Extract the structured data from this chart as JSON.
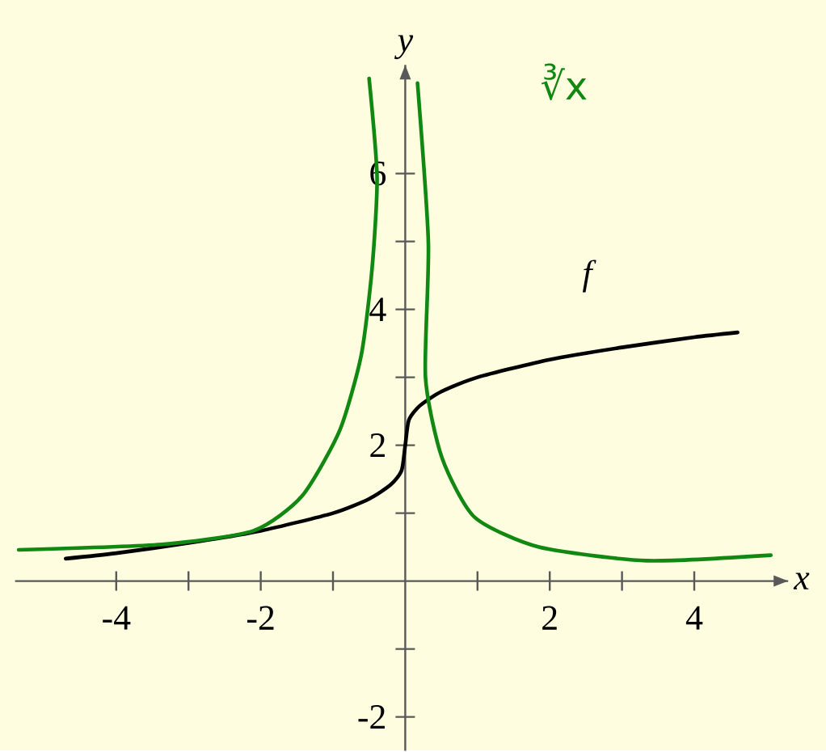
{
  "chart_data": {
    "type": "line",
    "xlabel": "x",
    "ylabel": "y",
    "xlim": [
      -5.4,
      5.3
    ],
    "ylim": [
      -2.5,
      7.6
    ],
    "line_style": "solid",
    "xticks": [
      -4,
      {
        "value": -3,
        "label": null
      },
      -2,
      {
        "value": -1,
        "label": null
      },
      {
        "value": 1,
        "label": null
      },
      2,
      {
        "value": 3,
        "label": null
      },
      4
    ],
    "yticks": [
      -2,
      {
        "value": -1,
        "label": null
      },
      {
        "value": 1,
        "label": null
      },
      2,
      {
        "value": 3,
        "label": null
      },
      4,
      {
        "value": 5,
        "label": null
      },
      6
    ],
    "series": [
      {
        "color": "#000000",
        "x": [
          -4.7,
          -4,
          -3,
          -2,
          -1,
          -0.5,
          -0.2,
          -0.05,
          0,
          0.05,
          0.2,
          0.5,
          1,
          2,
          3,
          4,
          4.6
        ],
        "values": [
          0.33,
          0.41,
          0.56,
          0.74,
          1.0,
          1.21,
          1.42,
          1.63,
          2,
          2.37,
          2.58,
          2.79,
          3.0,
          3.26,
          3.44,
          3.59,
          3.66
        ]
      },
      {
        "color": "#118811",
        "x": [
          -5.35,
          -3.37,
          -2.1,
          -1.43,
          -0.91,
          -0.61,
          -0.46,
          -0.39,
          -0.5
        ],
        "values": [
          0.46,
          0.54,
          0.74,
          1.25,
          2.21,
          3.32,
          4.59,
          5.94,
          7.4
        ]
      },
      {
        "color": "#118811",
        "x": [
          0.17,
          0.32,
          0.28,
          0.51,
          0.96,
          1.85,
          3.34,
          5.06
        ],
        "values": [
          7.33,
          4.98,
          3.0,
          1.81,
          0.94,
          0.5,
          0.3,
          0.38
        ]
      }
    ],
    "annotations": [
      "f",
      "∛x"
    ]
  }
}
